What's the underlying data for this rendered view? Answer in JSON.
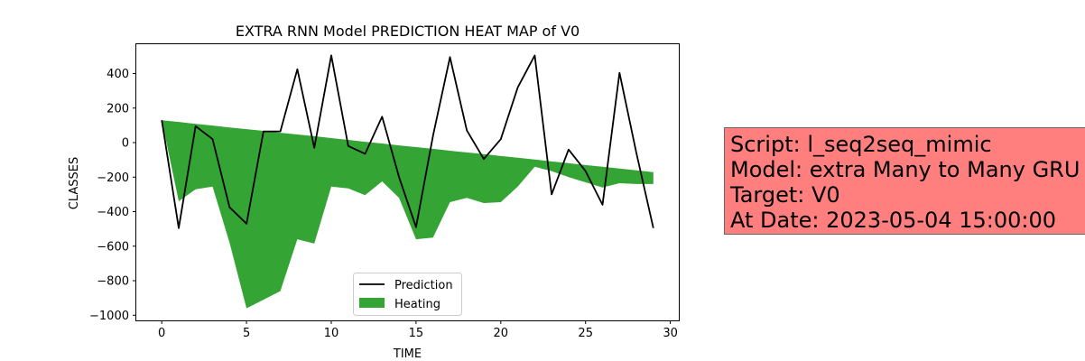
{
  "chart_data": {
    "type": "line",
    "title": "EXTRA RNN Model PREDICTION HEAT MAP of V0",
    "xlabel": "TIME",
    "ylabel": "CLASSES",
    "xlim": [
      -1.5,
      30.5
    ],
    "ylim": [
      -1030,
      570
    ],
    "x_ticks": [
      0,
      5,
      10,
      15,
      20,
      25,
      30
    ],
    "y_ticks": [
      -1000,
      -800,
      -600,
      -400,
      -200,
      0,
      200,
      400
    ],
    "x_tick_labels": [
      "0",
      "5",
      "10",
      "15",
      "20",
      "25",
      "30"
    ],
    "y_tick_labels": [
      "−1000",
      "−800",
      "−600",
      "−400",
      "−200",
      "0",
      "200",
      "400"
    ],
    "grid": false,
    "legend_position": "lower-center",
    "x": [
      0,
      1,
      2,
      3,
      4,
      5,
      6,
      7,
      8,
      9,
      10,
      11,
      12,
      13,
      14,
      15,
      16,
      17,
      18,
      19,
      20,
      21,
      22,
      23,
      24,
      25,
      26,
      27,
      28,
      29
    ],
    "series": [
      {
        "name": "Prediction",
        "kind": "line",
        "color": "#000000",
        "values": [
          130,
          -495,
          95,
          20,
          -375,
          -470,
          65,
          65,
          425,
          -30,
          505,
          -20,
          -65,
          150,
          -200,
          -490,
          40,
          495,
          70,
          -95,
          20,
          320,
          505,
          -300,
          -40,
          -165,
          -360,
          405,
          -60,
          -495
        ]
      },
      {
        "name": "Heating",
        "kind": "area",
        "color": "#2ca02c",
        "upper": [
          130,
          120,
          109,
          99,
          88,
          78,
          68,
          57,
          47,
          37,
          26,
          16,
          5,
          -5,
          -16,
          -26,
          -36,
          -47,
          -57,
          -67,
          -78,
          -88,
          -98,
          -109,
          -119,
          -130,
          -140,
          -150,
          -161,
          -171
        ],
        "lower": [
          130,
          -340,
          -270,
          -255,
          -580,
          -960,
          -910,
          -860,
          -560,
          -585,
          -255,
          -265,
          -305,
          -225,
          -320,
          -560,
          -550,
          -345,
          -320,
          -350,
          -345,
          -255,
          -140,
          -165,
          -200,
          -230,
          -260,
          -235,
          -240,
          -240
        ]
      }
    ]
  },
  "info_box": {
    "lines": [
      "Script: l_seq2seq_mimic",
      "Model: extra Many to Many GRU",
      "Target: V0",
      "At Date: 2023-05-04 15:00:00"
    ],
    "background": "#ff7f7f"
  }
}
